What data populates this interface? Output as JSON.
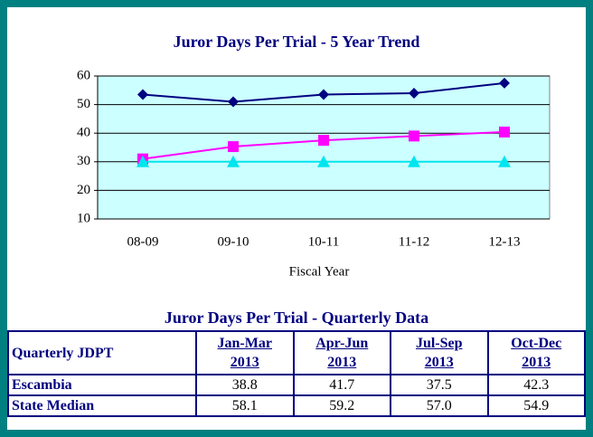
{
  "chart_data": {
    "type": "line",
    "title": "Juror Days Per Trial - 5 Year Trend",
    "x_label": "Fiscal Year",
    "categories": [
      "08-09",
      "09-10",
      "10-11",
      "11-12",
      "12-13"
    ],
    "series": [
      {
        "color": "#000080",
        "marker": "diamond",
        "values": [
          53.5,
          51,
          53.5,
          54,
          57.5
        ]
      },
      {
        "color": "#ff00ff",
        "marker": "square",
        "values": [
          31,
          35.3,
          37.5,
          39,
          40.4
        ]
      },
      {
        "color": "#00e5ee",
        "marker": "triangle",
        "values": [
          30,
          30,
          30,
          30,
          30
        ]
      }
    ],
    "ylim": [
      10,
      60
    ],
    "yticks": [
      10,
      20,
      30,
      40,
      50,
      60
    ],
    "grid": true,
    "plot_color": "#ccffff"
  },
  "table": {
    "title": "Juror Days Per Trial - Quarterly Data",
    "header": [
      "Quarterly JDPT",
      "Jan-Mar 2013",
      "Apr-Jun 2013",
      "Jul-Sep 2013",
      "Oct-Dec 2013"
    ],
    "rows": [
      [
        "Escambia",
        "38.8",
        "41.7",
        "37.5",
        "42.3"
      ],
      [
        "State Median",
        "58.1",
        "59.2",
        "57.0",
        "54.9"
      ]
    ]
  }
}
